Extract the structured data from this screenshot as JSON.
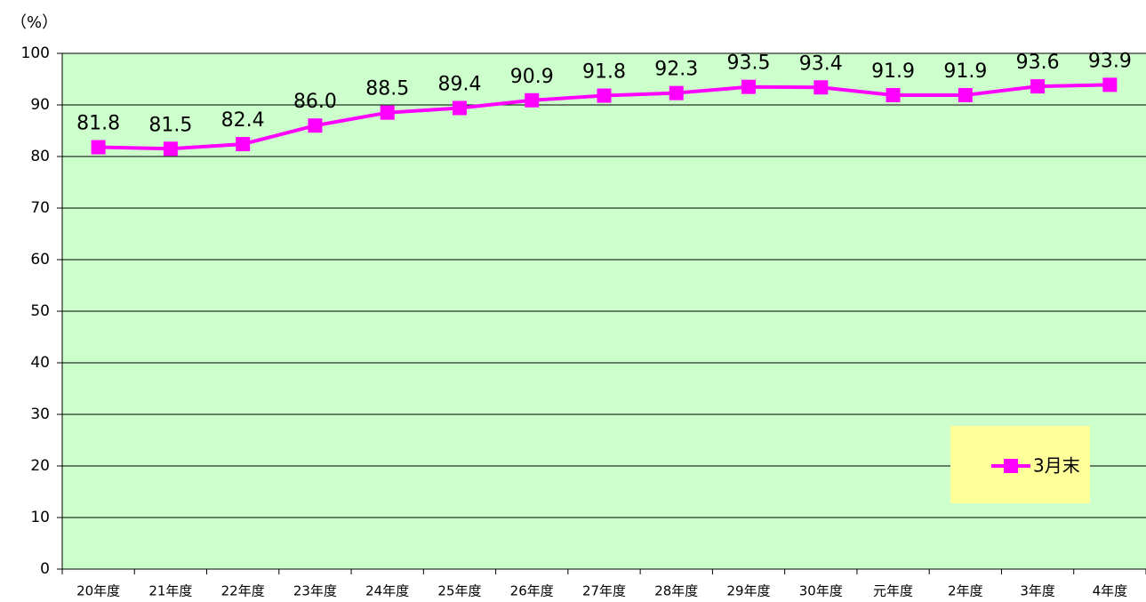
{
  "chart_data": {
    "type": "line",
    "y_label": "（%）",
    "categories": [
      "20年度",
      "21年度",
      "22年度",
      "23年度",
      "24年度",
      "25年度",
      "26年度",
      "27年度",
      "28年度",
      "29年度",
      "30年度",
      "元年度",
      "2年度",
      "3年度",
      "4年度"
    ],
    "series": [
      {
        "name": "3月末",
        "color": "#ff00ff",
        "values": [
          81.8,
          81.5,
          82.4,
          86,
          88.5,
          89.4,
          90.9,
          91.8,
          92.3,
          93.5,
          93.4,
          91.9,
          91.9,
          93.6,
          93.9
        ],
        "value_labels": [
          "81.8",
          "81.5",
          "82.4",
          "86.0",
          "88.5",
          "89.4",
          "90.9",
          "91.8",
          "92.3",
          "93.5",
          "93.4",
          "91.9",
          "91.9",
          "93.6",
          "93.9"
        ]
      }
    ],
    "ylim": [
      0,
      100
    ],
    "yticks": [
      0,
      10,
      20,
      30,
      40,
      50,
      60,
      70,
      80,
      90,
      100
    ],
    "grid": true,
    "plot_background": "#ccffcc",
    "legend_background": "#ffff99"
  }
}
